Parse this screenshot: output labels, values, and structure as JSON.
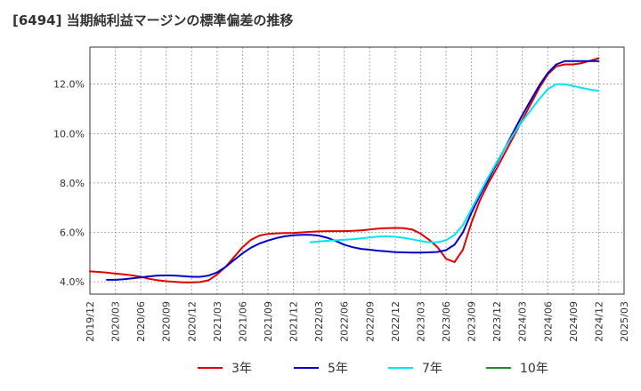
{
  "chart_data": {
    "type": "line",
    "title": "[6494]  当期純利益マージンの標準偏差の推移",
    "xlabel": "",
    "ylabel": "",
    "x_ticks": [
      "2019/12",
      "2020/03",
      "2020/06",
      "2020/09",
      "2020/12",
      "2021/03",
      "2021/06",
      "2021/09",
      "2021/12",
      "2022/03",
      "2022/06",
      "2022/09",
      "2022/12",
      "2023/03",
      "2023/06",
      "2023/09",
      "2023/12",
      "2024/03",
      "2024/06",
      "2024/09",
      "2024/12",
      "2025/03"
    ],
    "y_ticks": [
      4.0,
      6.0,
      8.0,
      10.0,
      12.0
    ],
    "y_tick_labels": [
      "4.0%",
      "6.0%",
      "8.0%",
      "10.0%",
      "12.0%"
    ],
    "ylim": [
      3.5,
      13.5
    ],
    "grid": true,
    "legend_position": "bottom",
    "series": [
      {
        "name": "3年",
        "color": "#e00000",
        "points": [
          {
            "x": "2019/12",
            "y": 4.42
          },
          {
            "x": "2020/01",
            "y": 4.4
          },
          {
            "x": "2020/02",
            "y": 4.37
          },
          {
            "x": "2020/03",
            "y": 4.33
          },
          {
            "x": "2020/04",
            "y": 4.3
          },
          {
            "x": "2020/05",
            "y": 4.26
          },
          {
            "x": "2020/06",
            "y": 4.2
          },
          {
            "x": "2020/07",
            "y": 4.12
          },
          {
            "x": "2020/08",
            "y": 4.06
          },
          {
            "x": "2020/09",
            "y": 4.02
          },
          {
            "x": "2020/10",
            "y": 4.0
          },
          {
            "x": "2020/11",
            "y": 3.98
          },
          {
            "x": "2020/12",
            "y": 3.98
          },
          {
            "x": "2021/01",
            "y": 3.99
          },
          {
            "x": "2021/02",
            "y": 4.06
          },
          {
            "x": "2021/03",
            "y": 4.3
          },
          {
            "x": "2021/04",
            "y": 4.6
          },
          {
            "x": "2021/05",
            "y": 5.0
          },
          {
            "x": "2021/06",
            "y": 5.4
          },
          {
            "x": "2021/07",
            "y": 5.7
          },
          {
            "x": "2021/08",
            "y": 5.87
          },
          {
            "x": "2021/09",
            "y": 5.94
          },
          {
            "x": "2021/10",
            "y": 5.96
          },
          {
            "x": "2021/11",
            "y": 5.97
          },
          {
            "x": "2021/12",
            "y": 5.98
          },
          {
            "x": "2022/01",
            "y": 6.0
          },
          {
            "x": "2022/02",
            "y": 6.02
          },
          {
            "x": "2022/03",
            "y": 6.04
          },
          {
            "x": "2022/04",
            "y": 6.05
          },
          {
            "x": "2022/05",
            "y": 6.05
          },
          {
            "x": "2022/06",
            "y": 6.05
          },
          {
            "x": "2022/07",
            "y": 6.06
          },
          {
            "x": "2022/08",
            "y": 6.08
          },
          {
            "x": "2022/09",
            "y": 6.12
          },
          {
            "x": "2022/10",
            "y": 6.15
          },
          {
            "x": "2022/11",
            "y": 6.17
          },
          {
            "x": "2022/12",
            "y": 6.18
          },
          {
            "x": "2023/01",
            "y": 6.17
          },
          {
            "x": "2023/02",
            "y": 6.12
          },
          {
            "x": "2023/03",
            "y": 5.95
          },
          {
            "x": "2023/04",
            "y": 5.7
          },
          {
            "x": "2023/05",
            "y": 5.4
          },
          {
            "x": "2023/06",
            "y": 4.93
          },
          {
            "x": "2023/07",
            "y": 4.8
          },
          {
            "x": "2023/08",
            "y": 5.3
          },
          {
            "x": "2023/09",
            "y": 6.4
          },
          {
            "x": "2023/10",
            "y": 7.3
          },
          {
            "x": "2023/11",
            "y": 8.0
          },
          {
            "x": "2023/12",
            "y": 8.6
          },
          {
            "x": "2024/01",
            "y": 9.25
          },
          {
            "x": "2024/02",
            "y": 9.9
          },
          {
            "x": "2024/03",
            "y": 10.55
          },
          {
            "x": "2024/04",
            "y": 11.2
          },
          {
            "x": "2024/05",
            "y": 11.85
          },
          {
            "x": "2024/06",
            "y": 12.4
          },
          {
            "x": "2024/07",
            "y": 12.72
          },
          {
            "x": "2024/08",
            "y": 12.8
          },
          {
            "x": "2024/09",
            "y": 12.8
          },
          {
            "x": "2024/10",
            "y": 12.85
          },
          {
            "x": "2024/11",
            "y": 12.95
          },
          {
            "x": "2024/12",
            "y": 13.05
          }
        ]
      },
      {
        "name": "5年",
        "color": "#0000c8",
        "points": [
          {
            "x": "2020/02",
            "y": 4.08
          },
          {
            "x": "2020/03",
            "y": 4.08
          },
          {
            "x": "2020/04",
            "y": 4.1
          },
          {
            "x": "2020/05",
            "y": 4.14
          },
          {
            "x": "2020/06",
            "y": 4.18
          },
          {
            "x": "2020/07",
            "y": 4.22
          },
          {
            "x": "2020/08",
            "y": 4.25
          },
          {
            "x": "2020/09",
            "y": 4.26
          },
          {
            "x": "2020/10",
            "y": 4.25
          },
          {
            "x": "2020/11",
            "y": 4.23
          },
          {
            "x": "2020/12",
            "y": 4.2
          },
          {
            "x": "2021/01",
            "y": 4.2
          },
          {
            "x": "2021/02",
            "y": 4.25
          },
          {
            "x": "2021/03",
            "y": 4.38
          },
          {
            "x": "2021/04",
            "y": 4.6
          },
          {
            "x": "2021/05",
            "y": 4.88
          },
          {
            "x": "2021/06",
            "y": 5.15
          },
          {
            "x": "2021/07",
            "y": 5.38
          },
          {
            "x": "2021/08",
            "y": 5.55
          },
          {
            "x": "2021/09",
            "y": 5.67
          },
          {
            "x": "2021/10",
            "y": 5.77
          },
          {
            "x": "2021/11",
            "y": 5.84
          },
          {
            "x": "2021/12",
            "y": 5.88
          },
          {
            "x": "2022/01",
            "y": 5.9
          },
          {
            "x": "2022/02",
            "y": 5.9
          },
          {
            "x": "2022/03",
            "y": 5.87
          },
          {
            "x": "2022/04",
            "y": 5.78
          },
          {
            "x": "2022/05",
            "y": 5.65
          },
          {
            "x": "2022/06",
            "y": 5.5
          },
          {
            "x": "2022/07",
            "y": 5.4
          },
          {
            "x": "2022/08",
            "y": 5.33
          },
          {
            "x": "2022/09",
            "y": 5.3
          },
          {
            "x": "2022/10",
            "y": 5.26
          },
          {
            "x": "2022/11",
            "y": 5.23
          },
          {
            "x": "2022/12",
            "y": 5.2
          },
          {
            "x": "2023/01",
            "y": 5.19
          },
          {
            "x": "2023/02",
            "y": 5.18
          },
          {
            "x": "2023/03",
            "y": 5.18
          },
          {
            "x": "2023/04",
            "y": 5.19
          },
          {
            "x": "2023/05",
            "y": 5.21
          },
          {
            "x": "2023/06",
            "y": 5.28
          },
          {
            "x": "2023/07",
            "y": 5.5
          },
          {
            "x": "2023/08",
            "y": 6.0
          },
          {
            "x": "2023/09",
            "y": 6.8
          },
          {
            "x": "2023/10",
            "y": 7.5
          },
          {
            "x": "2023/11",
            "y": 8.15
          },
          {
            "x": "2023/12",
            "y": 8.8
          },
          {
            "x": "2024/01",
            "y": 9.45
          },
          {
            "x": "2024/02",
            "y": 10.1
          },
          {
            "x": "2024/03",
            "y": 10.75
          },
          {
            "x": "2024/04",
            "y": 11.35
          },
          {
            "x": "2024/05",
            "y": 11.95
          },
          {
            "x": "2024/06",
            "y": 12.45
          },
          {
            "x": "2024/07",
            "y": 12.8
          },
          {
            "x": "2024/08",
            "y": 12.93
          },
          {
            "x": "2024/09",
            "y": 12.93
          },
          {
            "x": "2024/10",
            "y": 12.93
          },
          {
            "x": "2024/11",
            "y": 12.93
          },
          {
            "x": "2024/12",
            "y": 12.93
          }
        ]
      },
      {
        "name": "7年",
        "color": "#00e6f0",
        "points": [
          {
            "x": "2022/02",
            "y": 5.6
          },
          {
            "x": "2022/03",
            "y": 5.63
          },
          {
            "x": "2022/04",
            "y": 5.66
          },
          {
            "x": "2022/05",
            "y": 5.68
          },
          {
            "x": "2022/06",
            "y": 5.7
          },
          {
            "x": "2022/07",
            "y": 5.72
          },
          {
            "x": "2022/08",
            "y": 5.76
          },
          {
            "x": "2022/09",
            "y": 5.8
          },
          {
            "x": "2022/10",
            "y": 5.83
          },
          {
            "x": "2022/11",
            "y": 5.84
          },
          {
            "x": "2022/12",
            "y": 5.82
          },
          {
            "x": "2023/01",
            "y": 5.78
          },
          {
            "x": "2023/02",
            "y": 5.72
          },
          {
            "x": "2023/03",
            "y": 5.65
          },
          {
            "x": "2023/04",
            "y": 5.6
          },
          {
            "x": "2023/05",
            "y": 5.6
          },
          {
            "x": "2023/06",
            "y": 5.68
          },
          {
            "x": "2023/07",
            "y": 5.9
          },
          {
            "x": "2023/08",
            "y": 6.3
          },
          {
            "x": "2023/09",
            "y": 6.95
          },
          {
            "x": "2023/10",
            "y": 7.6
          },
          {
            "x": "2023/11",
            "y": 8.25
          },
          {
            "x": "2023/12",
            "y": 8.85
          },
          {
            "x": "2024/01",
            "y": 9.45
          },
          {
            "x": "2024/02",
            "y": 10.0
          },
          {
            "x": "2024/03",
            "y": 10.5
          },
          {
            "x": "2024/04",
            "y": 10.95
          },
          {
            "x": "2024/05",
            "y": 11.4
          },
          {
            "x": "2024/06",
            "y": 11.8
          },
          {
            "x": "2024/07",
            "y": 12.0
          },
          {
            "x": "2024/08",
            "y": 12.0
          },
          {
            "x": "2024/09",
            "y": 11.92
          },
          {
            "x": "2024/10",
            "y": 11.85
          },
          {
            "x": "2024/11",
            "y": 11.78
          },
          {
            "x": "2024/12",
            "y": 11.73
          }
        ]
      },
      {
        "name": "10年",
        "color": "#228b22",
        "points": []
      }
    ]
  }
}
